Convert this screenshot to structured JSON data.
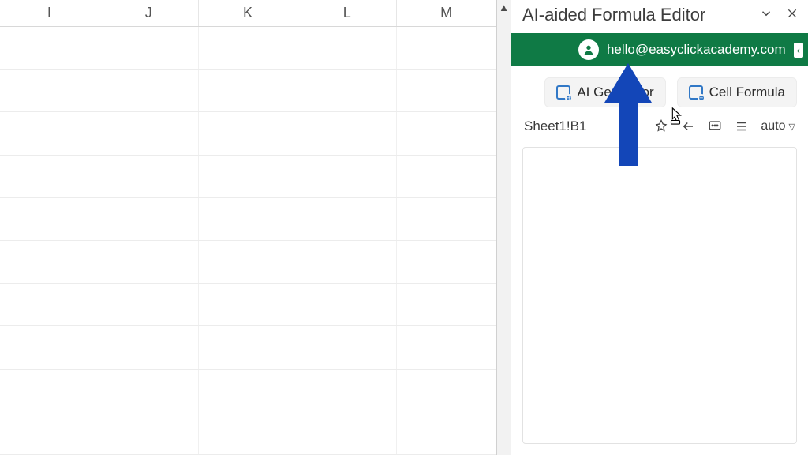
{
  "sheet": {
    "columns": [
      "I",
      "J",
      "K",
      "L",
      "M"
    ],
    "row_count": 10
  },
  "panel": {
    "title": "AI-aided Formula Editor",
    "account": {
      "email": "hello@easyclickacademy.com",
      "bg_color": "#0f7a45"
    },
    "buttons": {
      "ai_generator": "AI Generator",
      "cell_formula": "Cell Formula"
    },
    "toolbar": {
      "cell_ref": "Sheet1!B1",
      "auto_label": "auto"
    }
  },
  "annotation": {
    "arrow_color": "#1346b8"
  }
}
